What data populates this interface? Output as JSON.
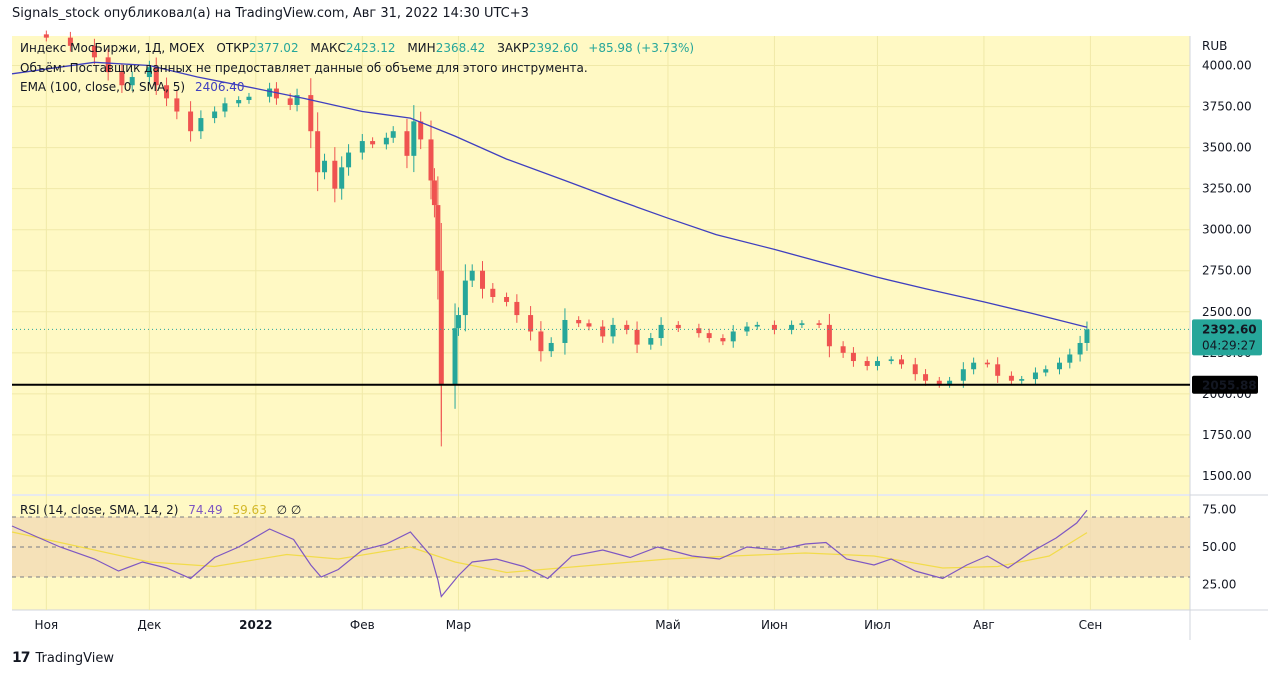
{
  "header": {
    "published_line": "Signals_stock опубликовал(а) на TradingView.com, Авг 31, 2022 14:30 UTC+3"
  },
  "legend": {
    "instrument": "Индекс МосБиржи, 1Д, MOEX",
    "open_label": "ОТКР",
    "open_value": "2377.02",
    "high_label": "МАКС",
    "high_value": "2423.12",
    "low_label": "МИН",
    "low_value": "2368.42",
    "close_label": "ЗАКР",
    "close_value": "2392.60",
    "change": "+85.98 (+3.73%)",
    "volume_note": "Объём: Поставщик данных не предоставляет данные об объеме для этого инструмента.",
    "ema_label": "EMA (100, close, 0, SMA, 5)",
    "ema_value": "2406.40",
    "rsi_label": "RSI (14, close, SMA, 14, 2)",
    "rsi_value": "74.49",
    "rsi_ma_value": "59.63",
    "rsi_extra": "∅  ∅"
  },
  "price_axis": {
    "currency": "RUB",
    "ticks": [
      "4000.00",
      "3750.00",
      "3500.00",
      "3250.00",
      "3000.00",
      "2750.00",
      "2500.00",
      "2250.00",
      "2000.00",
      "1750.00",
      "1500.00"
    ],
    "last_price": "2392.60",
    "countdown": "04:29:27",
    "hline_label": "2055.88"
  },
  "rsi_axis": {
    "ticks": [
      "75.00",
      "50.00",
      "25.00"
    ]
  },
  "time_axis": {
    "labels": [
      {
        "text": "Ноя",
        "date": "2021-11-01",
        "bold": false
      },
      {
        "text": "Дек",
        "date": "2021-12-01",
        "bold": false
      },
      {
        "text": "2022",
        "date": "2022-01-01",
        "bold": true
      },
      {
        "text": "Фев",
        "date": "2022-02-01",
        "bold": false
      },
      {
        "text": "Мар",
        "date": "2022-03-01",
        "bold": false
      },
      {
        "text": "Май",
        "date": "2022-05-01",
        "bold": false
      },
      {
        "text": "Июн",
        "date": "2022-06-01",
        "bold": false
      },
      {
        "text": "Июл",
        "date": "2022-07-01",
        "bold": false
      },
      {
        "text": "Авг",
        "date": "2022-08-01",
        "bold": false
      },
      {
        "text": "Сен",
        "date": "2022-09-01",
        "bold": false
      }
    ]
  },
  "footer": {
    "brand": "TradingView"
  },
  "colors": {
    "background": "#fff9c4",
    "up": "#26a69a",
    "down": "#ef5350",
    "ema": "#3f3fbf",
    "rsi": "#7e57c2",
    "rsi_ma": "#f2dc4b",
    "rsi_band": "#f3dbb5",
    "hline": "#000000",
    "last_price_bg": "#26a69a"
  },
  "chart_data": [
    {
      "type": "candlestick",
      "title": "Индекс МосБиржи, 1Д, MOEX",
      "ylabel": "RUB",
      "ylim": [
        1390,
        4180
      ],
      "x_start": "2021-10-22",
      "x_end": "2022-09-30",
      "hline": 2055.88,
      "series": [
        {
          "name": "Индекс МосБиржи",
          "points": [
            [
              "2021-10-25",
              4190
            ],
            [
              "2021-11-01",
              4170
            ],
            [
              "2021-11-08",
              4120
            ],
            [
              "2021-11-15",
              4050
            ],
            [
              "2021-11-19",
              3960
            ],
            [
              "2021-11-23",
              3880
            ],
            [
              "2021-11-26",
              3930
            ],
            [
              "2021-12-01",
              3990
            ],
            [
              "2021-12-03",
              3880
            ],
            [
              "2021-12-06",
              3800
            ],
            [
              "2021-12-09",
              3720
            ],
            [
              "2021-12-13",
              3600
            ],
            [
              "2021-12-16",
              3680
            ],
            [
              "2021-12-20",
              3720
            ],
            [
              "2021-12-23",
              3770
            ],
            [
              "2021-12-27",
              3790
            ],
            [
              "2021-12-30",
              3810
            ],
            [
              "2022-01-05",
              3860
            ],
            [
              "2022-01-07",
              3800
            ],
            [
              "2022-01-11",
              3760
            ],
            [
              "2022-01-13",
              3820
            ],
            [
              "2022-01-17",
              3600
            ],
            [
              "2022-01-19",
              3350
            ],
            [
              "2022-01-21",
              3420
            ],
            [
              "2022-01-24",
              3250
            ],
            [
              "2022-01-26",
              3380
            ],
            [
              "2022-01-28",
              3470
            ],
            [
              "2022-02-01",
              3540
            ],
            [
              "2022-02-04",
              3520
            ],
            [
              "2022-02-08",
              3560
            ],
            [
              "2022-02-10",
              3600
            ],
            [
              "2022-02-14",
              3450
            ],
            [
              "2022-02-16",
              3660
            ],
            [
              "2022-02-18",
              3550
            ],
            [
              "2022-02-21",
              3300
            ],
            [
              "2022-02-22",
              3150
            ],
            [
              "2022-02-23",
              2750
            ],
            [
              "2022-02-24",
              2060
            ],
            [
              "2022-02-28",
              2400
            ],
            [
              "2022-03-01",
              2480
            ],
            [
              "2022-03-03",
              2690
            ],
            [
              "2022-03-05",
              2750
            ],
            [
              "2022-03-08",
              2640
            ],
            [
              "2022-03-11",
              2590
            ],
            [
              "2022-03-15",
              2560
            ],
            [
              "2022-03-18",
              2480
            ],
            [
              "2022-03-22",
              2380
            ],
            [
              "2022-03-25",
              2260
            ],
            [
              "2022-03-28",
              2310
            ],
            [
              "2022-04-01",
              2450
            ],
            [
              "2022-04-05",
              2430
            ],
            [
              "2022-04-08",
              2410
            ],
            [
              "2022-04-12",
              2350
            ],
            [
              "2022-04-15",
              2420
            ],
            [
              "2022-04-19",
              2390
            ],
            [
              "2022-04-22",
              2300
            ],
            [
              "2022-04-26",
              2340
            ],
            [
              "2022-04-29",
              2420
            ],
            [
              "2022-05-04",
              2400
            ],
            [
              "2022-05-10",
              2370
            ],
            [
              "2022-05-13",
              2340
            ],
            [
              "2022-05-17",
              2320
            ],
            [
              "2022-05-20",
              2380
            ],
            [
              "2022-05-24",
              2410
            ],
            [
              "2022-05-27",
              2420
            ],
            [
              "2022-06-01",
              2390
            ],
            [
              "2022-06-06",
              2420
            ],
            [
              "2022-06-09",
              2430
            ],
            [
              "2022-06-14",
              2420
            ],
            [
              "2022-06-17",
              2290
            ],
            [
              "2022-06-21",
              2250
            ],
            [
              "2022-06-24",
              2200
            ],
            [
              "2022-06-28",
              2170
            ],
            [
              "2022-07-01",
              2200
            ],
            [
              "2022-07-05",
              2210
            ],
            [
              "2022-07-08",
              2180
            ],
            [
              "2022-07-12",
              2120
            ],
            [
              "2022-07-15",
              2080
            ],
            [
              "2022-07-19",
              2060
            ],
            [
              "2022-07-22",
              2080
            ],
            [
              "2022-07-26",
              2150
            ],
            [
              "2022-07-29",
              2190
            ],
            [
              "2022-08-02",
              2180
            ],
            [
              "2022-08-05",
              2110
            ],
            [
              "2022-08-09",
              2080
            ],
            [
              "2022-08-12",
              2090
            ],
            [
              "2022-08-16",
              2130
            ],
            [
              "2022-08-19",
              2150
            ],
            [
              "2022-08-23",
              2190
            ],
            [
              "2022-08-26",
              2240
            ],
            [
              "2022-08-29",
              2310
            ],
            [
              "2022-08-31",
              2392.6
            ]
          ]
        },
        {
          "name": "EMA (100, close, 0, SMA, 5)",
          "points": [
            [
              "2021-10-22",
              3950
            ],
            [
              "2021-11-15",
              4020
            ],
            [
              "2021-12-01",
              4000
            ],
            [
              "2021-12-15",
              3930
            ],
            [
              "2022-01-01",
              3860
            ],
            [
              "2022-01-15",
              3800
            ],
            [
              "2022-02-01",
              3720
            ],
            [
              "2022-02-15",
              3680
            ],
            [
              "2022-02-28",
              3570
            ],
            [
              "2022-03-15",
              3430
            ],
            [
              "2022-04-01",
              3300
            ],
            [
              "2022-04-15",
              3190
            ],
            [
              "2022-05-01",
              3070
            ],
            [
              "2022-05-15",
              2970
            ],
            [
              "2022-06-01",
              2880
            ],
            [
              "2022-06-15",
              2800
            ],
            [
              "2022-07-01",
              2710
            ],
            [
              "2022-07-15",
              2640
            ],
            [
              "2022-08-01",
              2560
            ],
            [
              "2022-08-15",
              2490
            ],
            [
              "2022-08-31",
              2406.4
            ]
          ]
        }
      ]
    },
    {
      "type": "line",
      "title": "RSI (14, close, SMA, 14, 2)",
      "ylim": [
        8,
        84
      ],
      "band": [
        30,
        70
      ],
      "midline": 50,
      "series": [
        {
          "name": "RSI",
          "points": [
            [
              "2021-10-22",
              64
            ],
            [
              "2021-10-28",
              58
            ],
            [
              "2021-11-05",
              50
            ],
            [
              "2021-11-15",
              42
            ],
            [
              "2021-11-22",
              34
            ],
            [
              "2021-11-29",
              40
            ],
            [
              "2021-12-06",
              36
            ],
            [
              "2021-12-13",
              29
            ],
            [
              "2021-12-20",
              43
            ],
            [
              "2021-12-27",
              50
            ],
            [
              "2022-01-05",
              62
            ],
            [
              "2022-01-12",
              55
            ],
            [
              "2022-01-17",
              38
            ],
            [
              "2022-01-20",
              30
            ],
            [
              "2022-01-25",
              35
            ],
            [
              "2022-02-01",
              48
            ],
            [
              "2022-02-08",
              52
            ],
            [
              "2022-02-15",
              60
            ],
            [
              "2022-02-21",
              44
            ],
            [
              "2022-02-23",
              28
            ],
            [
              "2022-02-24",
              17
            ],
            [
              "2022-03-01",
              31
            ],
            [
              "2022-03-05",
              40
            ],
            [
              "2022-03-12",
              42
            ],
            [
              "2022-03-20",
              37
            ],
            [
              "2022-03-27",
              29
            ],
            [
              "2022-04-03",
              44
            ],
            [
              "2022-04-12",
              48
            ],
            [
              "2022-04-20",
              43
            ],
            [
              "2022-04-28",
              50
            ],
            [
              "2022-05-08",
              44
            ],
            [
              "2022-05-16",
              42
            ],
            [
              "2022-05-24",
              50
            ],
            [
              "2022-06-02",
              48
            ],
            [
              "2022-06-10",
              52
            ],
            [
              "2022-06-16",
              53
            ],
            [
              "2022-06-22",
              42
            ],
            [
              "2022-06-30",
              38
            ],
            [
              "2022-07-05",
              42
            ],
            [
              "2022-07-12",
              34
            ],
            [
              "2022-07-20",
              29
            ],
            [
              "2022-07-27",
              38
            ],
            [
              "2022-08-02",
              44
            ],
            [
              "2022-08-08",
              36
            ],
            [
              "2022-08-15",
              47
            ],
            [
              "2022-08-22",
              56
            ],
            [
              "2022-08-28",
              66
            ],
            [
              "2022-08-31",
              74.49
            ]
          ]
        },
        {
          "name": "RSI MA",
          "points": [
            [
              "2021-10-22",
              60
            ],
            [
              "2021-11-15",
              48
            ],
            [
              "2021-12-01",
              40
            ],
            [
              "2021-12-20",
              37
            ],
            [
              "2022-01-10",
              45
            ],
            [
              "2022-01-25",
              42
            ],
            [
              "2022-02-15",
              50
            ],
            [
              "2022-02-28",
              40
            ],
            [
              "2022-03-15",
              33
            ],
            [
              "2022-04-10",
              38
            ],
            [
              "2022-05-01",
              42
            ],
            [
              "2022-05-20",
              44
            ],
            [
              "2022-06-10",
              46
            ],
            [
              "2022-06-30",
              44
            ],
            [
              "2022-07-20",
              36
            ],
            [
              "2022-08-05",
              37
            ],
            [
              "2022-08-20",
              44
            ],
            [
              "2022-08-31",
              59.63
            ]
          ]
        }
      ]
    }
  ]
}
